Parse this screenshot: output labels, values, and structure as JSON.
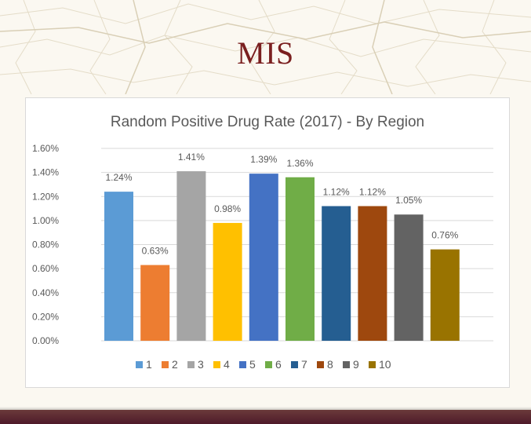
{
  "slide": {
    "title": "MIS"
  },
  "chart_data": {
    "type": "bar",
    "title": "Random Positive Drug Rate (2017) - By Region",
    "categories": [
      "1",
      "2",
      "3",
      "4",
      "5",
      "6",
      "7",
      "8",
      "9",
      "10"
    ],
    "values": [
      1.24,
      0.63,
      1.41,
      0.98,
      1.39,
      1.36,
      1.12,
      1.12,
      1.05,
      0.76
    ],
    "data_labels": [
      "1.24%",
      "0.63%",
      "1.41%",
      "0.98%",
      "1.39%",
      "1.36%",
      "1.12%",
      "1.12%",
      "1.05%",
      "0.76%"
    ],
    "colors": [
      "#5b9bd5",
      "#ed7d31",
      "#a5a5a5",
      "#ffc000",
      "#4472c4",
      "#70ad47",
      "#255e91",
      "#9e480e",
      "#636363",
      "#997300"
    ],
    "yticks": [
      "0.00%",
      "0.20%",
      "0.40%",
      "0.60%",
      "0.80%",
      "1.00%",
      "1.20%",
      "1.40%",
      "1.60%"
    ],
    "ylim": [
      0,
      1.6
    ],
    "grid": true,
    "legend_position": "bottom"
  },
  "colors": {
    "title": "#7a1f1f",
    "bottom_bar": "#5a2232"
  }
}
